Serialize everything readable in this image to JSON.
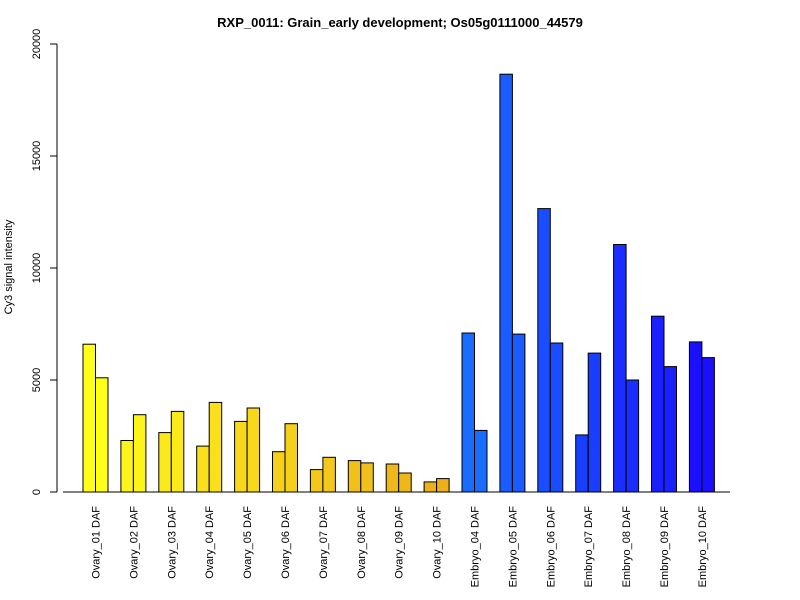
{
  "chart_data": {
    "type": "bar",
    "title": "RXP_0011: Grain_early development; Os05g0111000_44579",
    "xlabel": "",
    "ylabel": "Cy3 signal intensity",
    "ylim": [
      0,
      20000
    ],
    "yticks": [
      0,
      5000,
      10000,
      15000,
      20000
    ],
    "grid": false,
    "categories": [
      "Ovary_01 DAF",
      "Ovary_02 DAF",
      "Ovary_03 DAF",
      "Ovary_04 DAF",
      "Ovary_05 DAF",
      "Ovary_06 DAF",
      "Ovary_07 DAF",
      "Ovary_08 DAF",
      "Ovary_09 DAF",
      "Ovary_10 DAF",
      "Embryo_04 DAF",
      "Embryo_05 DAF",
      "Embryo_06 DAF",
      "Embryo_07 DAF",
      "Embryo_08 DAF",
      "Embryo_09 DAF",
      "Embryo_10 DAF"
    ],
    "colors": [
      "#ffff1a",
      "#fdf41a",
      "#fbe91a",
      "#f9e01a",
      "#f7d81a",
      "#f5d01a",
      "#f3c81a",
      "#f1c01a",
      "#efb81a",
      "#edb01a",
      "#1a6bff",
      "#1a5cff",
      "#1a4dff",
      "#1a3eff",
      "#1a2fff",
      "#1a20ff",
      "#1a10ff"
    ],
    "series": [
      {
        "values": [
          6600,
          2300,
          2650,
          2050,
          3150,
          1800,
          1000,
          1400,
          1250,
          450,
          7100,
          18650,
          12650,
          2550,
          11050,
          7850,
          6700
        ]
      },
      {
        "values": [
          5100,
          3450,
          3600,
          4000,
          3750,
          3050,
          1550,
          1300,
          850,
          600,
          2750,
          7050,
          6650,
          6200,
          5000,
          5600,
          6000
        ]
      }
    ]
  }
}
